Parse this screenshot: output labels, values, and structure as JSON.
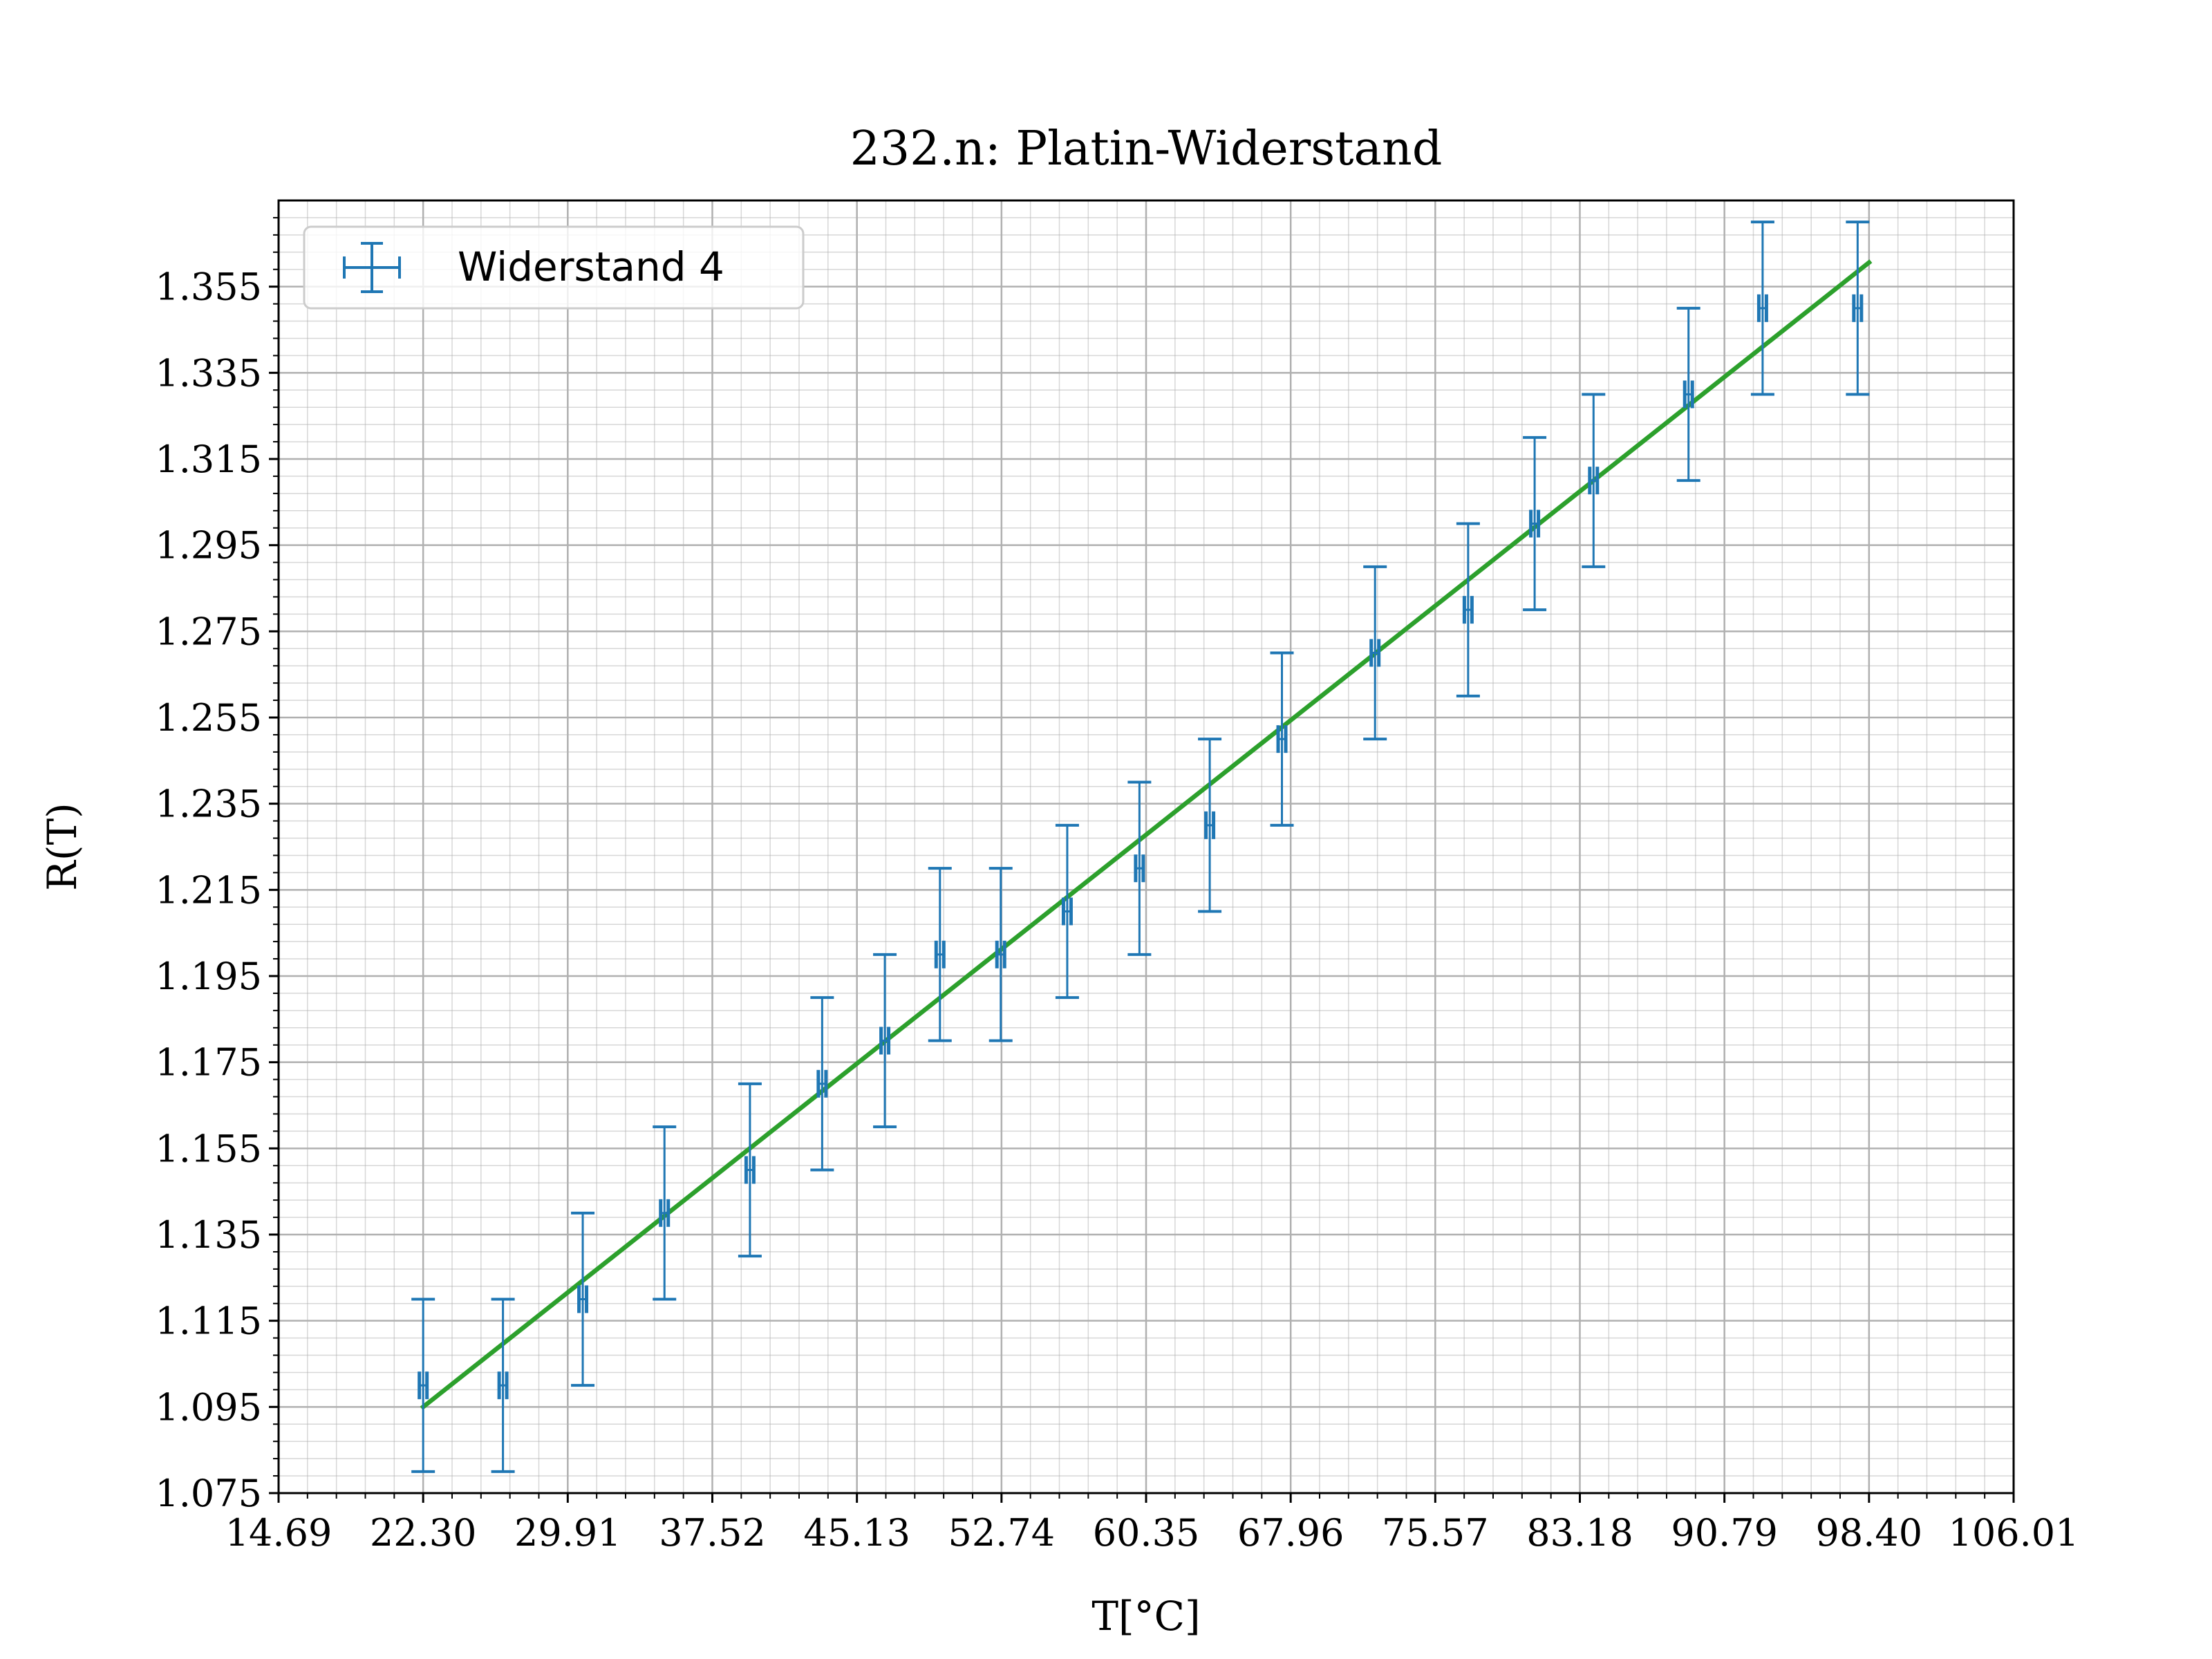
{
  "chart_data": {
    "type": "scatter",
    "title": "232.n: Platin-Widerstand",
    "xlabel": "T[°C]",
    "ylabel": "R(T)",
    "xlim": [
      14.69,
      106.01
    ],
    "ylim": [
      1.075,
      1.375
    ],
    "x_ticks": [
      "14.69",
      "22.30",
      "29.91",
      "37.52",
      "45.13",
      "52.74",
      "60.35",
      "67.96",
      "75.57",
      "83.18",
      "90.79",
      "98.40",
      "106.01"
    ],
    "y_ticks": [
      "1.075",
      "1.095",
      "1.115",
      "1.135",
      "1.155",
      "1.175",
      "1.195",
      "1.215",
      "1.235",
      "1.255",
      "1.275",
      "1.295",
      "1.315",
      "1.335",
      "1.355"
    ],
    "grid": true,
    "legend": {
      "position": "top-left",
      "entries": [
        "Widerstand 4"
      ]
    },
    "colors": {
      "data": "#1f77b4",
      "fit": "#2ca02c",
      "grid": "#b0b0b0"
    },
    "series": [
      {
        "name": "Widerstand 4",
        "kind": "errorbar",
        "x": [
          22.3,
          26.5,
          30.7,
          35.0,
          39.5,
          43.3,
          46.6,
          49.5,
          52.7,
          56.2,
          60.0,
          63.7,
          67.5,
          72.4,
          77.3,
          80.8,
          83.9,
          88.9,
          92.8,
          97.8
        ],
        "y": [
          1.1,
          1.1,
          1.12,
          1.14,
          1.15,
          1.17,
          1.18,
          1.2,
          1.2,
          1.21,
          1.22,
          1.23,
          1.25,
          1.27,
          1.28,
          1.3,
          1.31,
          1.33,
          1.35,
          1.35
        ],
        "yerr": 0.02,
        "xerr": 0.2
      },
      {
        "name": "fit",
        "kind": "line",
        "x": [
          22.3,
          98.4
        ],
        "y": [
          1.095,
          1.3606
        ]
      }
    ]
  }
}
